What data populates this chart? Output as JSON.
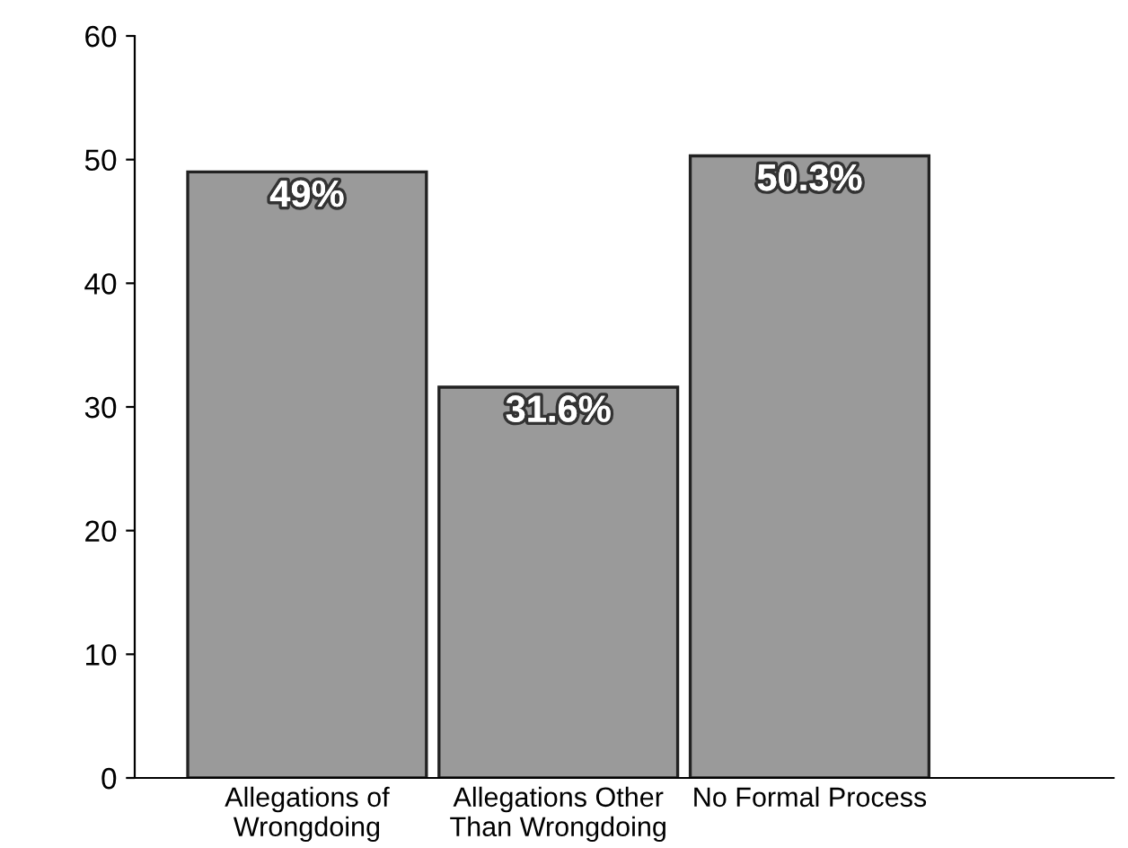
{
  "chart_data": {
    "type": "bar",
    "categories": [
      "Allegations of\nWrongdoing",
      "Allegations Other\nThan Wrongdoing",
      "No Formal Process"
    ],
    "values": [
      49,
      31.6,
      50.3
    ],
    "value_labels": [
      "49%",
      "31.6%",
      "50.3%"
    ],
    "color": "#9a9a9a",
    "ylim": [
      0,
      60
    ],
    "yticks": [
      0,
      10,
      20,
      30,
      40,
      50,
      60
    ],
    "grid": false,
    "legend": false
  }
}
